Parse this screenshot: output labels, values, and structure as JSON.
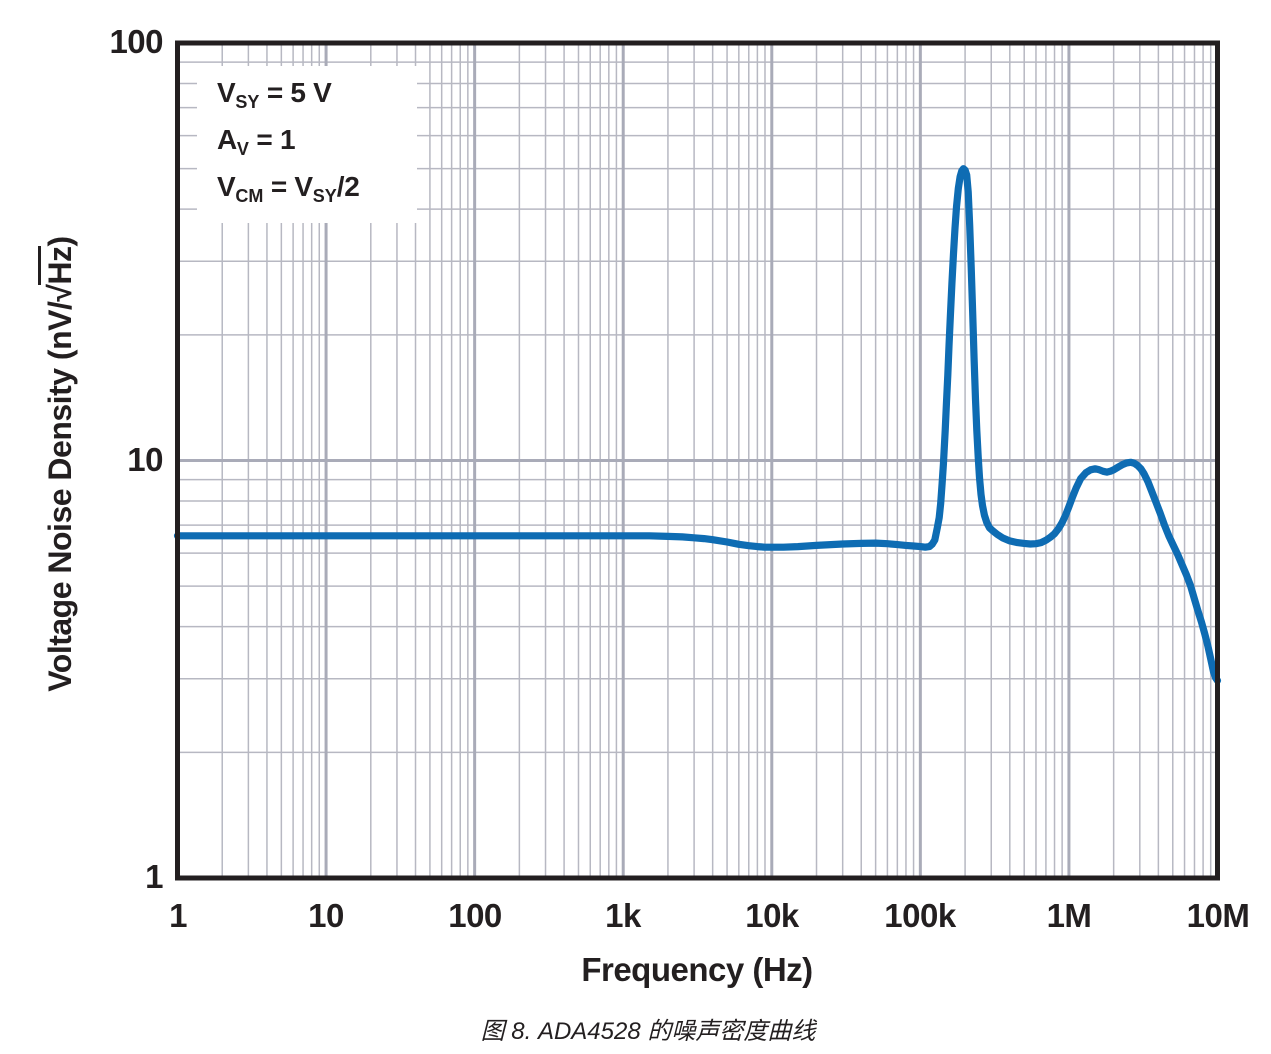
{
  "figure": {
    "caption": "图 8. ADA4528 的噪声密度曲线"
  },
  "conditions": {
    "lines": [
      {
        "t1": "V",
        "s1": "SY",
        "t2": " = 5 V",
        "s2": "",
        "t3": ""
      },
      {
        "t1": "A",
        "s1": "V",
        "t2": " = 1",
        "s2": "",
        "t3": ""
      },
      {
        "t1": "V",
        "s1": "CM",
        "t2": " = V",
        "s2": "SY",
        "t3": "/2"
      }
    ]
  },
  "colors": {
    "curve": "#0e6cb3",
    "grid_minor": "#b7b8c2",
    "grid_major": "#a9abb8",
    "axis": "#231f20",
    "text": "#231f20",
    "background": "#ffffff"
  },
  "chart_data": {
    "type": "line",
    "title": "",
    "xlabel": "Frequency (Hz)",
    "ylabel": "Voltage Noise Density (nV/√Hz)",
    "ylabel_parts": {
      "pre": "Voltage Noise Density (nV/",
      "radical": "√",
      "radicand": "Hz",
      "post": ")"
    },
    "x_scale": "log",
    "y_scale": "log",
    "xlim": [
      1,
      10000000
    ],
    "ylim": [
      1,
      100
    ],
    "grid": "log major + minor, both axes",
    "legend": "none",
    "annotation_lines": [
      "VSY = 5 V",
      "AV = 1",
      "VCM = VSY/2"
    ],
    "x_ticks": [
      {
        "v": 1,
        "label": "1"
      },
      {
        "v": 10,
        "label": "10"
      },
      {
        "v": 100,
        "label": "100"
      },
      {
        "v": 1000,
        "label": "1k"
      },
      {
        "v": 10000,
        "label": "10k"
      },
      {
        "v": 100000,
        "label": "100k"
      },
      {
        "v": 1000000,
        "label": "1M"
      },
      {
        "v": 10000000,
        "label": "10M"
      }
    ],
    "y_ticks": [
      {
        "v": 100,
        "label": "100"
      },
      {
        "v": 10,
        "label": "10"
      },
      {
        "v": 1,
        "label": "1"
      }
    ],
    "series": [
      {
        "name": "ADA4528 voltage noise density",
        "color": "#0e6cb3",
        "flat_band_nv": 6.6,
        "chopping_spur": {
          "freq": 200000,
          "peak_nv": 50
        },
        "second_hump": {
          "freq": 2600000,
          "peak_nv": 9.9
        },
        "end_value_nv": 3.0,
        "points": [
          [
            1,
            6.6
          ],
          [
            1.5,
            6.6
          ],
          [
            2,
            6.6
          ],
          [
            3,
            6.6
          ],
          [
            5,
            6.6
          ],
          [
            7,
            6.6
          ],
          [
            10,
            6.6
          ],
          [
            15,
            6.6
          ],
          [
            20,
            6.6
          ],
          [
            30,
            6.6
          ],
          [
            50,
            6.6
          ],
          [
            70,
            6.6
          ],
          [
            100,
            6.6
          ],
          [
            150,
            6.6
          ],
          [
            200,
            6.6
          ],
          [
            300,
            6.6
          ],
          [
            500,
            6.6
          ],
          [
            700,
            6.6
          ],
          [
            1000,
            6.6
          ],
          [
            1500,
            6.6
          ],
          [
            2000,
            6.58
          ],
          [
            2500,
            6.56
          ],
          [
            3000,
            6.53
          ],
          [
            3500,
            6.5
          ],
          [
            4000,
            6.46
          ],
          [
            5000,
            6.38
          ],
          [
            6000,
            6.3
          ],
          [
            7000,
            6.25
          ],
          [
            8000,
            6.22
          ],
          [
            9000,
            6.2
          ],
          [
            10000,
            6.2
          ],
          [
            12000,
            6.2
          ],
          [
            15000,
            6.22
          ],
          [
            20000,
            6.26
          ],
          [
            25000,
            6.29
          ],
          [
            30000,
            6.31
          ],
          [
            40000,
            6.33
          ],
          [
            50000,
            6.34
          ],
          [
            60000,
            6.32
          ],
          [
            70000,
            6.29
          ],
          [
            80000,
            6.26
          ],
          [
            90000,
            6.24
          ],
          [
            100000,
            6.22
          ],
          [
            108000,
            6.2
          ],
          [
            115000,
            6.22
          ],
          [
            120000,
            6.3
          ],
          [
            125000,
            6.45
          ],
          [
            130000,
            6.9
          ],
          [
            134000,
            7.3
          ],
          [
            137000,
            7.9
          ],
          [
            140000,
            8.8
          ],
          [
            143000,
            9.8
          ],
          [
            147000,
            11.8
          ],
          [
            150000,
            13.8
          ],
          [
            153000,
            16
          ],
          [
            156000,
            18.8
          ],
          [
            159000,
            22
          ],
          [
            163000,
            26.5
          ],
          [
            167000,
            31
          ],
          [
            171000,
            36
          ],
          [
            175000,
            40.5
          ],
          [
            180000,
            44.8
          ],
          [
            185000,
            47.8
          ],
          [
            190000,
            49.4
          ],
          [
            195000,
            50
          ],
          [
            200000,
            49.6
          ],
          [
            205000,
            48.3
          ],
          [
            210000,
            44
          ],
          [
            215000,
            36.5
          ],
          [
            220000,
            29
          ],
          [
            225000,
            22.5
          ],
          [
            230000,
            17.5
          ],
          [
            235000,
            14
          ],
          [
            240000,
            11.8
          ],
          [
            245000,
            10.2
          ],
          [
            250000,
            9.1
          ],
          [
            256000,
            8.3
          ],
          [
            262000,
            7.8
          ],
          [
            270000,
            7.4
          ],
          [
            280000,
            7.1
          ],
          [
            292000,
            6.9
          ],
          [
            305000,
            6.8
          ],
          [
            330000,
            6.65
          ],
          [
            360000,
            6.52
          ],
          [
            400000,
            6.42
          ],
          [
            450000,
            6.36
          ],
          [
            500000,
            6.33
          ],
          [
            550000,
            6.31
          ],
          [
            600000,
            6.32
          ],
          [
            650000,
            6.36
          ],
          [
            700000,
            6.44
          ],
          [
            750000,
            6.55
          ],
          [
            800000,
            6.68
          ],
          [
            850000,
            6.86
          ],
          [
            900000,
            7.1
          ],
          [
            950000,
            7.4
          ],
          [
            1000000,
            7.75
          ],
          [
            1060000,
            8.2
          ],
          [
            1120000,
            8.6
          ],
          [
            1200000,
            9.05
          ],
          [
            1300000,
            9.35
          ],
          [
            1400000,
            9.5
          ],
          [
            1500000,
            9.55
          ],
          [
            1600000,
            9.5
          ],
          [
            1700000,
            9.42
          ],
          [
            1800000,
            9.38
          ],
          [
            1900000,
            9.42
          ],
          [
            2000000,
            9.5
          ],
          [
            2150000,
            9.65
          ],
          [
            2300000,
            9.78
          ],
          [
            2450000,
            9.87
          ],
          [
            2600000,
            9.9
          ],
          [
            2750000,
            9.85
          ],
          [
            2900000,
            9.73
          ],
          [
            3050000,
            9.55
          ],
          [
            3200000,
            9.3
          ],
          [
            3400000,
            8.9
          ],
          [
            3600000,
            8.45
          ],
          [
            3850000,
            7.95
          ],
          [
            4100000,
            7.5
          ],
          [
            4400000,
            7.0
          ],
          [
            4700000,
            6.6
          ],
          [
            5000000,
            6.3
          ],
          [
            5400000,
            5.95
          ],
          [
            5800000,
            5.6
          ],
          [
            6200000,
            5.3
          ],
          [
            6600000,
            5.0
          ],
          [
            7000000,
            4.65
          ],
          [
            7400000,
            4.35
          ],
          [
            7800000,
            4.1
          ],
          [
            8200000,
            3.85
          ],
          [
            8600000,
            3.6
          ],
          [
            9000000,
            3.35
          ],
          [
            9400000,
            3.12
          ],
          [
            9700000,
            3.02
          ],
          [
            10000000,
            2.97
          ]
        ]
      }
    ]
  }
}
